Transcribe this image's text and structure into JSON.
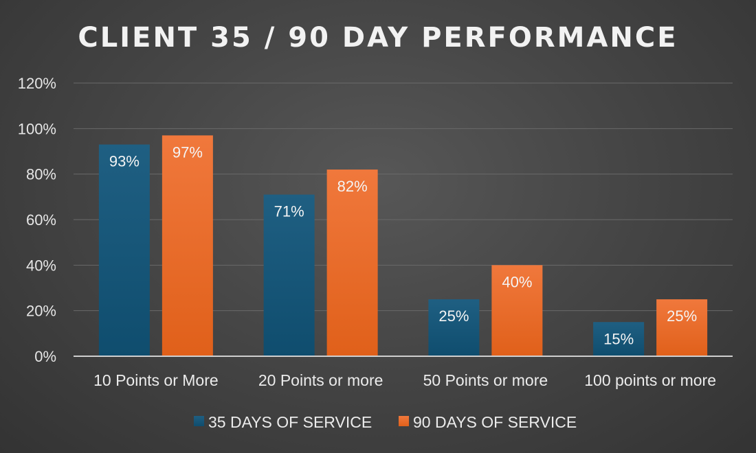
{
  "chart_data": {
    "type": "bar",
    "title": "CLIENT 35 / 90 DAY PERFORMANCE",
    "xlabel": "",
    "ylabel": "",
    "ylim": [
      0,
      120
    ],
    "yticks": [
      "0%",
      "20%",
      "40%",
      "60%",
      "80%",
      "100%",
      "120%"
    ],
    "ytick_values": [
      0,
      20,
      40,
      60,
      80,
      100,
      120
    ],
    "grid": true,
    "legend_position": "bottom-center",
    "categories": [
      "10 Points or More",
      "20 Points or more",
      "50 Points or more",
      "100 points or more"
    ],
    "series": [
      {
        "name": "35 DAYS OF SERVICE",
        "color": "#1f5f82",
        "color_dark": "#0f4d6e",
        "values": [
          93,
          71,
          25,
          15
        ],
        "labels": [
          "93%",
          "71%",
          "25%",
          "15%"
        ]
      },
      {
        "name": "90 DAYS OF SERVICE",
        "color": "#f0783c",
        "color_dark": "#e0601a",
        "values": [
          97,
          82,
          40,
          25
        ],
        "labels": [
          "97%",
          "82%",
          "40%",
          "25%"
        ]
      }
    ]
  }
}
